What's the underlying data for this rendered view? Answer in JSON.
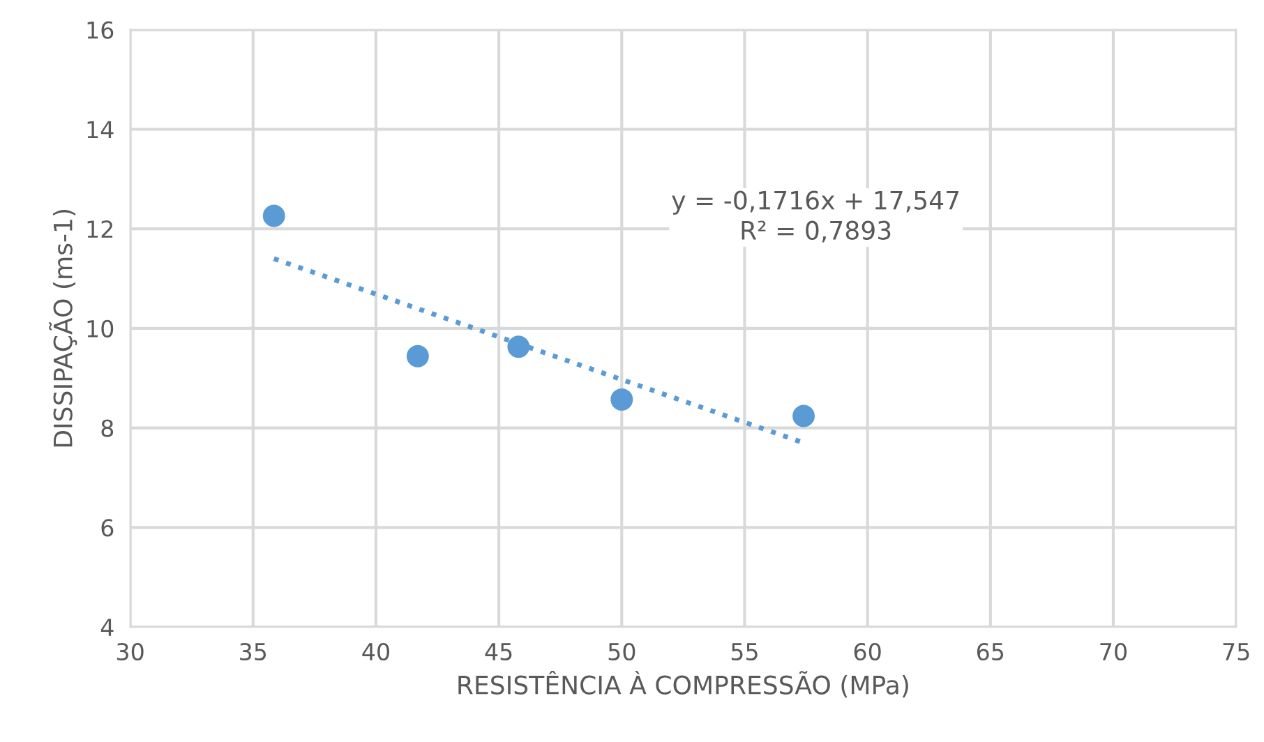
{
  "chart_data": {
    "type": "scatter",
    "xlabel": "RESISTÊNCIA À COMPRESSÃO (MPa)",
    "ylabel": "DISSIPAÇÃO (ms-1)",
    "series": [
      {
        "color": "#5b9bd5",
        "marker": "circle",
        "x": [
          35.85,
          41.7,
          45.8,
          50.0,
          57.4
        ],
        "values": [
          12.26,
          9.44,
          9.63,
          8.57,
          8.24
        ]
      },
      {
        "type": "line",
        "color": "#5b9bd5",
        "line_style": "dotted",
        "marker": "none",
        "x": [
          35.85,
          57.4
        ],
        "values": [
          11.4,
          7.7
        ]
      }
    ],
    "annotations": [
      "y = -0,1716x + 17,547",
      "R² = 0,7893"
    ],
    "xlim": [
      30,
      75
    ],
    "xticks": [
      30,
      35,
      40,
      45,
      50,
      55,
      60,
      65,
      70,
      75
    ],
    "ylim": [
      4,
      16
    ],
    "yticks": [
      4,
      6,
      8,
      10,
      12,
      14,
      16
    ],
    "grid": true
  }
}
